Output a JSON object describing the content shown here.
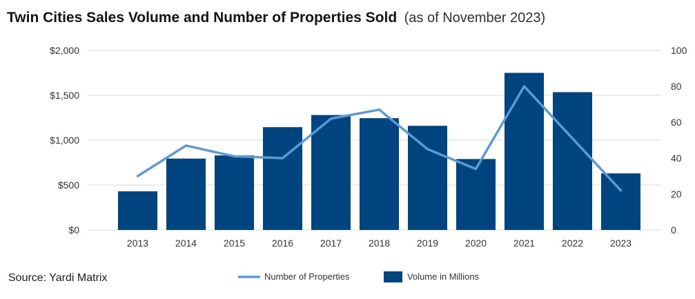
{
  "header": {
    "title": "Twin Cities Sales Volume and Number of Properties Sold",
    "subtitle": "(as of November 2023)"
  },
  "footer": {
    "source": "Source: Yardi Matrix"
  },
  "chart_data": {
    "type": "bar",
    "title": "Twin Cities Sales Volume and Number of Properties Sold",
    "subtitle": "(as of November 2023)",
    "categories": [
      "2013",
      "2014",
      "2015",
      "2016",
      "2017",
      "2018",
      "2019",
      "2020",
      "2021",
      "2022",
      "2023"
    ],
    "series": [
      {
        "name": "Volume in Millions",
        "type": "bar",
        "axis": "left",
        "color": "#004580",
        "values": [
          430,
          795,
          830,
          1145,
          1280,
          1245,
          1160,
          790,
          1750,
          1535,
          630
        ]
      },
      {
        "name": "Number of Properties",
        "type": "line",
        "axis": "right",
        "color": "#5b9bd5",
        "values": [
          30,
          47,
          41,
          40,
          62,
          67,
          45,
          34,
          80,
          51,
          22
        ]
      }
    ],
    "y_left": {
      "ylim": [
        0,
        2000
      ],
      "ticks": [
        0,
        500,
        1000,
        1500,
        2000
      ],
      "tick_labels": [
        "$0",
        "$500",
        "$1,000",
        "$1,500",
        "$2,000"
      ]
    },
    "y_right": {
      "ylim": [
        0,
        100
      ],
      "ticks": [
        0,
        20,
        40,
        60,
        80,
        100
      ],
      "tick_labels": [
        "0",
        "20",
        "40",
        "60",
        "80",
        "100"
      ]
    },
    "grid": true,
    "legend": {
      "placement": "bottom-center",
      "entries": [
        "Number of Properties",
        "Volume in Millions"
      ]
    }
  }
}
